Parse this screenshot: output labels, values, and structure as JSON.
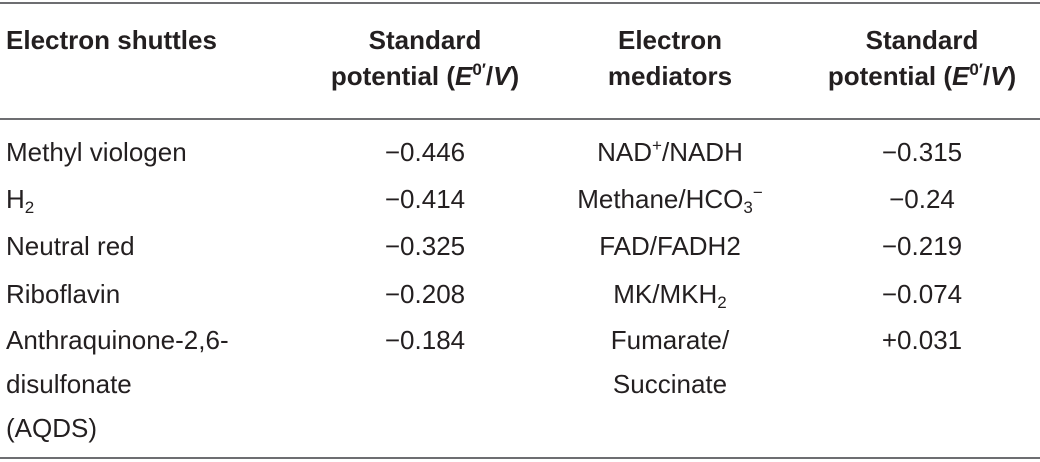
{
  "table": {
    "headers": {
      "col1": "Electron shuttles",
      "col2_line1": "Standard",
      "col2_line2_pre": "potential (",
      "col2_E": "E",
      "col2_sup": "0′",
      "col2_slash": "/",
      "col2_V": "V",
      "col2_close": ")",
      "col3_line1": "Electron",
      "col3_line2": "mediators",
      "col4_line1": "Standard",
      "col4_line2_pre": "potential (",
      "col4_E": "E",
      "col4_sup": "0′",
      "col4_slash": "/",
      "col4_V": "V",
      "col4_close": ")"
    },
    "rows": [
      {
        "shuttle": "Methyl viologen",
        "shuttle_potential": "−0.446",
        "mediator_pre": "NAD",
        "mediator_sup": "+",
        "mediator_post": "/NADH",
        "mediator_potential": "−0.315"
      },
      {
        "shuttle_pre": "H",
        "shuttle_sub": "2",
        "shuttle_potential": "−0.414",
        "mediator_pre": "Methane/HCO",
        "mediator_sub": "3",
        "mediator_sup": "−",
        "mediator_potential": "−0.24"
      },
      {
        "shuttle": "Neutral red",
        "shuttle_potential": "−0.325",
        "mediator": "FAD/FADH2",
        "mediator_potential": "−0.219"
      },
      {
        "shuttle": "Riboflavin",
        "shuttle_potential": "−0.208",
        "mediator_pre": "MK/MKH",
        "mediator_sub": "2",
        "mediator_potential": "−0.074"
      },
      {
        "shuttle_lines": [
          "Anthraquinone-2,6-",
          "disulfonate",
          "(AQDS)"
        ],
        "shuttle_potential": "−0.184",
        "mediator_lines": [
          "Fumarate/",
          "Succinate"
        ],
        "mediator_potential": "+0.031"
      }
    ]
  }
}
